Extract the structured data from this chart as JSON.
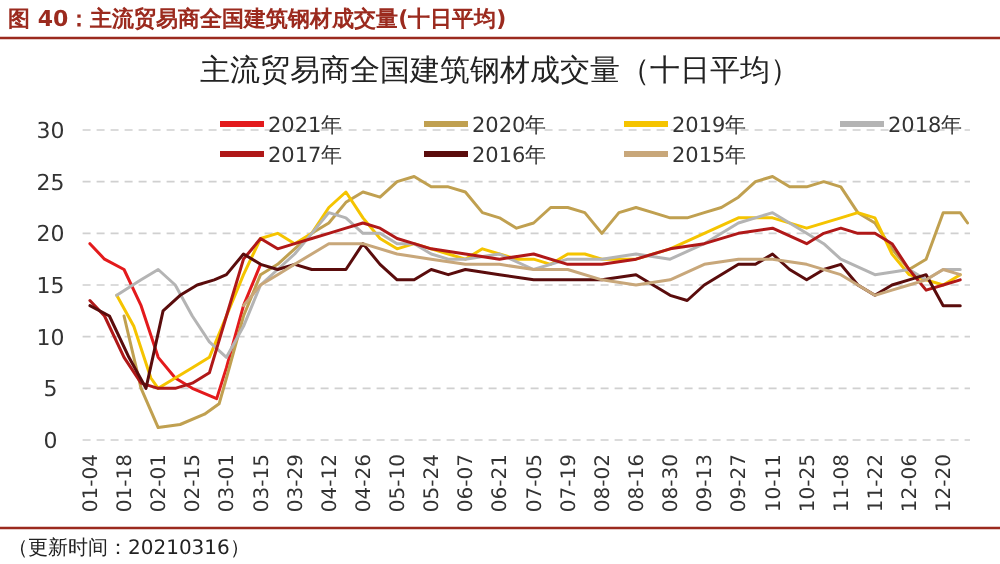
{
  "chart_data": {
    "type": "line",
    "title": "主流贸易商全国建筑钢材成交量（十日平均）",
    "annotations": [
      "图 40：主流贸易商全国建筑钢材成交量(十日平均)",
      "（更新时间：20210316）"
    ],
    "xlim": [
      "--01-01",
      "--12-31"
    ],
    "xticks": [
      {
        "value": "--01-04",
        "label": "01-04"
      },
      {
        "value": "--01-18",
        "label": "01-18"
      },
      {
        "value": "--02-01",
        "label": "02-01"
      },
      {
        "value": "--02-15",
        "label": "02-15"
      },
      {
        "value": "--03-01",
        "label": "03-01"
      },
      {
        "value": "--03-15",
        "label": "03-15"
      },
      {
        "value": "--03-29",
        "label": "03-29"
      },
      {
        "value": "--04-12",
        "label": "04-12"
      },
      {
        "value": "--04-26",
        "label": "04-26"
      },
      {
        "value": "--05-10",
        "label": "05-10"
      },
      {
        "value": "--05-24",
        "label": "05-24"
      },
      {
        "value": "--06-07",
        "label": "06-07"
      },
      {
        "value": "--06-21",
        "label": "06-21"
      },
      {
        "value": "--07-05",
        "label": "07-05"
      },
      {
        "value": "--07-19",
        "label": "07-19"
      },
      {
        "value": "--08-02",
        "label": "08-02"
      },
      {
        "value": "--08-16",
        "label": "08-16"
      },
      {
        "value": "--08-30",
        "label": "08-30"
      },
      {
        "value": "--09-13",
        "label": "09-13"
      },
      {
        "value": "--09-27",
        "label": "09-27"
      },
      {
        "value": "--10-11",
        "label": "10-11"
      },
      {
        "value": "--10-25",
        "label": "10-25"
      },
      {
        "value": "--11-08",
        "label": "11-08"
      },
      {
        "value": "--11-22",
        "label": "11-22"
      },
      {
        "value": "--12-06",
        "label": "12-06"
      },
      {
        "value": "--12-20",
        "label": "12-20"
      }
    ],
    "ylim": [
      0,
      30
    ],
    "yticks": [
      0,
      5,
      10,
      15,
      20,
      25,
      30
    ],
    "grid": "y",
    "legend": "top",
    "series": [
      {
        "name": "2021年",
        "color": "#e31a1c",
        "x": [
          "--01-04",
          "--01-10",
          "--01-18",
          "--01-25",
          "--02-01",
          "--02-08",
          "--02-15",
          "--02-25",
          "--03-01",
          "--03-08",
          "--03-15"
        ],
        "values": [
          19,
          17.5,
          16.5,
          13,
          8,
          6,
          5,
          4,
          7,
          13,
          17
        ]
      },
      {
        "name": "2020年",
        "color": "#c0a050",
        "x": [
          "--01-18",
          "--01-25",
          "--02-01",
          "--02-10",
          "--02-20",
          "--02-26",
          "--03-01",
          "--03-08",
          "--03-15",
          "--03-22",
          "--03-29",
          "--04-05",
          "--04-12",
          "--04-19",
          "--04-26",
          "--05-03",
          "--05-10",
          "--05-17",
          "--05-24",
          "--05-31",
          "--06-07",
          "--06-14",
          "--06-21",
          "--06-28",
          "--07-05",
          "--07-12",
          "--07-19",
          "--07-26",
          "--08-02",
          "--08-09",
          "--08-16",
          "--08-23",
          "--08-30",
          "--09-06",
          "--09-13",
          "--09-20",
          "--09-27",
          "--10-04",
          "--10-11",
          "--10-18",
          "--10-25",
          "--11-01",
          "--11-08",
          "--11-15",
          "--11-22",
          "--11-29",
          "--12-06",
          "--12-13",
          "--12-20",
          "--12-27",
          "--12-30"
        ],
        "values": [
          12,
          5,
          1.2,
          1.5,
          2.5,
          3.5,
          6,
          12,
          16,
          17,
          18.5,
          20,
          21,
          23,
          24,
          23.5,
          25,
          25.5,
          24.5,
          24.5,
          24,
          22,
          21.5,
          20.5,
          21,
          22.5,
          22.5,
          22,
          20,
          22,
          22.5,
          22,
          21.5,
          21.5,
          22,
          22.5,
          23.5,
          25,
          25.5,
          24.5,
          24.5,
          25,
          24.5,
          22,
          21,
          18.5,
          16.5,
          17.5,
          22,
          22,
          21
        ]
      },
      {
        "name": "2019年",
        "color": "#f5c400",
        "x": [
          "--01-15",
          "--01-22",
          "--01-29",
          "--02-01",
          "--02-08",
          "--02-15",
          "--02-22",
          "--03-01",
          "--03-08",
          "--03-15",
          "--03-22",
          "--03-29",
          "--04-05",
          "--04-12",
          "--04-19",
          "--04-26",
          "--05-03",
          "--05-10",
          "--05-17",
          "--05-24",
          "--05-31",
          "--06-07",
          "--06-14",
          "--06-21",
          "--06-28",
          "--07-05",
          "--07-12",
          "--07-19",
          "--07-26",
          "--08-02",
          "--08-16",
          "--08-30",
          "--09-13",
          "--09-27",
          "--10-11",
          "--10-25",
          "--11-08",
          "--11-15",
          "--11-22",
          "--11-29",
          "--12-06",
          "--12-13",
          "--12-20",
          "--12-27"
        ],
        "values": [
          14,
          11,
          6,
          5,
          6,
          7,
          8,
          12,
          16,
          19.5,
          20,
          19,
          20,
          22.5,
          24,
          21.5,
          19.5,
          18.5,
          19,
          18.5,
          18,
          17.5,
          18.5,
          18,
          17.5,
          17.5,
          17,
          18,
          18,
          17.5,
          17.5,
          18.5,
          20,
          21.5,
          21.5,
          20.5,
          21.5,
          22,
          21.5,
          18,
          16,
          15.5,
          15,
          16
        ]
      },
      {
        "name": "2018年",
        "color": "#b4b4b4",
        "x": [
          "--01-15",
          "--01-25",
          "--02-01",
          "--02-08",
          "--02-15",
          "--02-22",
          "--03-01",
          "--03-08",
          "--03-15",
          "--03-22",
          "--03-29",
          "--04-05",
          "--04-12",
          "--04-19",
          "--04-26",
          "--05-03",
          "--05-10",
          "--05-17",
          "--05-24",
          "--05-31",
          "--06-07",
          "--06-21",
          "--07-05",
          "--07-19",
          "--08-02",
          "--08-16",
          "--08-30",
          "--09-13",
          "--09-27",
          "--10-11",
          "--10-18",
          "--10-25",
          "--11-01",
          "--11-08",
          "--11-22",
          "--12-06",
          "--12-13",
          "--12-20",
          "--12-27"
        ],
        "values": [
          14,
          15.5,
          16.5,
          15,
          12,
          9.5,
          8,
          11,
          15,
          16.5,
          18,
          20,
          22,
          21.5,
          20,
          20,
          19,
          19,
          18,
          17.5,
          17.5,
          18,
          16.5,
          17.5,
          17.5,
          18,
          17.5,
          19,
          21,
          22,
          21,
          20,
          19,
          17.5,
          16,
          16.5,
          15.5,
          16.5,
          16.5
        ]
      },
      {
        "name": "2017年",
        "color": "#b01818",
        "x": [
          "--01-04",
          "--01-10",
          "--01-18",
          "--01-25",
          "--02-01",
          "--02-08",
          "--02-15",
          "--02-22",
          "--03-01",
          "--03-08",
          "--03-15",
          "--03-22",
          "--03-29",
          "--04-05",
          "--04-12",
          "--04-19",
          "--04-26",
          "--05-03",
          "--05-10",
          "--05-17",
          "--05-24",
          "--06-07",
          "--06-21",
          "--07-05",
          "--07-19",
          "--08-02",
          "--08-16",
          "--08-30",
          "--09-13",
          "--09-27",
          "--10-11",
          "--10-25",
          "--11-01",
          "--11-08",
          "--11-15",
          "--11-22",
          "--11-29",
          "--12-06",
          "--12-13",
          "--12-20",
          "--12-27"
        ],
        "values": [
          13.5,
          12,
          8,
          5.5,
          5,
          5,
          5.5,
          6.5,
          12,
          17.5,
          19.5,
          18.5,
          19,
          19.5,
          20,
          20.5,
          21,
          20.5,
          19.5,
          19,
          18.5,
          18,
          17.5,
          18,
          17,
          17,
          17.5,
          18.5,
          19,
          20,
          20.5,
          19,
          20,
          20.5,
          20,
          20,
          19,
          16.5,
          14.5,
          15,
          15.5
        ]
      },
      {
        "name": "2016年",
        "color": "#5a0c0c",
        "x": [
          "--01-04",
          "--01-12",
          "--01-20",
          "--01-27",
          "--02-03",
          "--02-10",
          "--02-17",
          "--02-24",
          "--03-01",
          "--03-08",
          "--03-15",
          "--03-22",
          "--03-29",
          "--04-05",
          "--04-12",
          "--04-19",
          "--04-26",
          "--05-03",
          "--05-10",
          "--05-17",
          "--05-24",
          "--05-31",
          "--06-07",
          "--06-21",
          "--07-05",
          "--07-19",
          "--08-02",
          "--08-16",
          "--08-23",
          "--08-30",
          "--09-06",
          "--09-13",
          "--09-27",
          "--10-04",
          "--10-11",
          "--10-18",
          "--10-25",
          "--11-01",
          "--11-08",
          "--11-15",
          "--11-22",
          "--11-29",
          "--12-06",
          "--12-13",
          "--12-20",
          "--12-27"
        ],
        "values": [
          13,
          12,
          8,
          5,
          12.5,
          14,
          15,
          15.5,
          16,
          18,
          17,
          16.5,
          17,
          16.5,
          16.5,
          16.5,
          19,
          17,
          15.5,
          15.5,
          16.5,
          16,
          16.5,
          16,
          15.5,
          15.5,
          15.5,
          16,
          15,
          14,
          13.5,
          15,
          17,
          17,
          18,
          16.5,
          15.5,
          16.5,
          17,
          15,
          14,
          15,
          15.5,
          16,
          13,
          13
        ]
      },
      {
        "name": "2015年",
        "color": "#c8a77a",
        "x": [
          "--03-08",
          "--03-15",
          "--03-22",
          "--03-29",
          "--04-05",
          "--04-12",
          "--04-26",
          "--05-10",
          "--05-24",
          "--06-07",
          "--06-21",
          "--07-05",
          "--07-19",
          "--08-02",
          "--08-16",
          "--08-30",
          "--09-13",
          "--09-27",
          "--10-11",
          "--10-25",
          "--11-08",
          "--11-15",
          "--11-22",
          "--11-29",
          "--12-06",
          "--12-13",
          "--12-20",
          "--12-27"
        ],
        "values": [
          13,
          15,
          16,
          17,
          18,
          19,
          19,
          18,
          17.5,
          17,
          17,
          16.5,
          16.5,
          15.5,
          15,
          15.5,
          17,
          17.5,
          17.5,
          17,
          16,
          15,
          14,
          14.5,
          15,
          15.5,
          16.5,
          16
        ]
      }
    ]
  }
}
